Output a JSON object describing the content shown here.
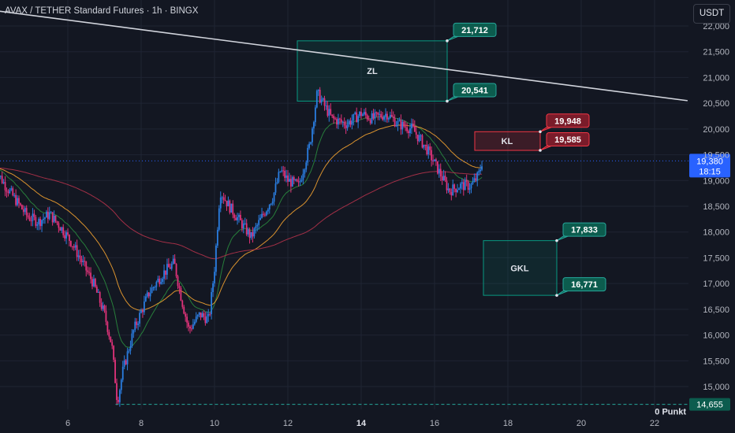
{
  "header": {
    "title": "AVAX / TETHER Standard Futures · 1h · BINGX",
    "currency_button": "USDT"
  },
  "chart_data": {
    "type": "candlestick",
    "symbol": "AVAX / TETHER Standard Futures",
    "interval": "1h",
    "exchange": "BINGX",
    "ylim": [
      14600,
      22200
    ],
    "y_ticks": [
      "22,000",
      "21,500",
      "21,000",
      "20,500",
      "20,000",
      "19,500",
      "19,000",
      "18,500",
      "18,000",
      "17,500",
      "17,000",
      "16,500",
      "16,000",
      "15,500",
      "15,000"
    ],
    "x_ticks": [
      "6",
      "8",
      "10",
      "12",
      "14",
      "16",
      "18",
      "20",
      "22"
    ],
    "x_tick_bold": "14",
    "current_price": {
      "label": "19,380",
      "countdown": "18:15",
      "value": 19380
    },
    "bottom_level": {
      "label": "14,655",
      "value": 14655,
      "text": "0 Punkt"
    },
    "zones": [
      {
        "label": "ZL",
        "top": 21712,
        "bottom": 20541,
        "color": "#089981",
        "callouts": [
          {
            "text": "21,712",
            "value": 21712
          },
          {
            "text": "20,541",
            "value": 20541
          }
        ]
      },
      {
        "label": "KL",
        "top": 19948,
        "bottom": 19585,
        "color": "#f23645",
        "callouts": [
          {
            "text": "19,948",
            "value": 19948
          },
          {
            "text": "19,585",
            "value": 19585
          }
        ]
      },
      {
        "label": "GKL",
        "top": 17833,
        "bottom": 16771,
        "color": "#089981",
        "callouts": [
          {
            "text": "17,833",
            "value": 17833
          },
          {
            "text": "16,771",
            "value": 16771
          }
        ]
      }
    ],
    "trendline": {
      "from_price": 22300,
      "to_price": 20550,
      "from_date": 4.0,
      "to_date": 22.9
    },
    "price_path": [
      [
        4.0,
        19250
      ],
      [
        4.3,
        18900
      ],
      [
        4.6,
        18600
      ],
      [
        4.9,
        18300
      ],
      [
        5.2,
        18200
      ],
      [
        5.5,
        18350
      ],
      [
        5.8,
        18100
      ],
      [
        6.1,
        17800
      ],
      [
        6.4,
        17400
      ],
      [
        6.7,
        17000
      ],
      [
        7.0,
        16400
      ],
      [
        7.2,
        15800
      ],
      [
        7.35,
        14700
      ],
      [
        7.5,
        15300
      ],
      [
        7.8,
        16100
      ],
      [
        8.2,
        16800
      ],
      [
        8.6,
        17200
      ],
      [
        8.9,
        17400
      ],
      [
        9.1,
        16700
      ],
      [
        9.3,
        16100
      ],
      [
        9.6,
        16400
      ],
      [
        9.85,
        16300
      ],
      [
        10.0,
        17300
      ],
      [
        10.15,
        18800
      ],
      [
        10.4,
        18500
      ],
      [
        10.7,
        18200
      ],
      [
        11.0,
        17900
      ],
      [
        11.3,
        18300
      ],
      [
        11.6,
        18700
      ],
      [
        11.8,
        19200
      ],
      [
        12.0,
        19000
      ],
      [
        12.3,
        18900
      ],
      [
        12.6,
        19700
      ],
      [
        12.8,
        20700
      ],
      [
        13.2,
        20200
      ],
      [
        13.6,
        20100
      ],
      [
        14.0,
        20300
      ],
      [
        14.3,
        20200
      ],
      [
        14.7,
        20300
      ],
      [
        15.0,
        20100
      ],
      [
        15.4,
        20000
      ],
      [
        15.8,
        19600
      ],
      [
        16.1,
        19200
      ],
      [
        16.4,
        18800
      ],
      [
        16.7,
        18900
      ],
      [
        17.0,
        18900
      ],
      [
        17.2,
        19100
      ],
      [
        17.3,
        19380
      ]
    ],
    "series": [
      {
        "color": "#2a8a3e"
      },
      {
        "color": "#f0a030"
      },
      {
        "color": "#b2324a"
      }
    ]
  }
}
